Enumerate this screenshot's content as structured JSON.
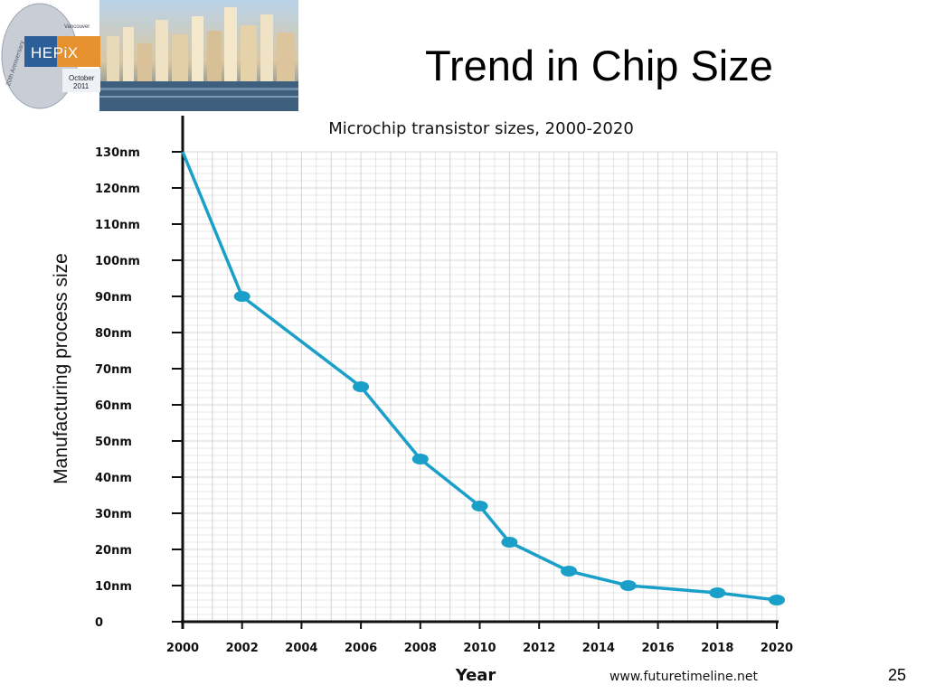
{
  "slide": {
    "title": "Trend in Chip Size",
    "page_number": "25"
  },
  "logo": {
    "name": "HEPiX",
    "city": "Vancouver",
    "month": "October",
    "year": "2011",
    "anniversary": "20th Anniversary"
  },
  "colors": {
    "series": "#1aa0c8",
    "grid": "#d4d4d4",
    "axis": "#111111"
  },
  "chart_data": {
    "type": "line",
    "title": "Microchip transistor sizes, 2000-2020",
    "xlabel": "Year",
    "ylabel": "Manufacturing process size",
    "source": "www.futuretimeline.net",
    "xlim": [
      2000,
      2020
    ],
    "ylim": [
      0,
      130
    ],
    "x_ticks": [
      "2000",
      "2002",
      "2004",
      "2006",
      "2008",
      "2010",
      "2012",
      "2014",
      "2016",
      "2018",
      "2020"
    ],
    "y_ticks": [
      "0",
      "10nm",
      "20nm",
      "30nm",
      "40nm",
      "50nm",
      "60nm",
      "70nm",
      "80nm",
      "90nm",
      "100nm",
      "110nm",
      "120nm",
      "130nm"
    ],
    "grid": true,
    "series": [
      {
        "x": [
          2000,
          2002,
          2006,
          2008,
          2010,
          2011,
          2013,
          2015,
          2018,
          2020
        ],
        "y": [
          130,
          90,
          65,
          45,
          32,
          22,
          14,
          10,
          8,
          6
        ],
        "markers": [
          false,
          true,
          true,
          true,
          true,
          true,
          true,
          true,
          true,
          true
        ]
      }
    ]
  }
}
